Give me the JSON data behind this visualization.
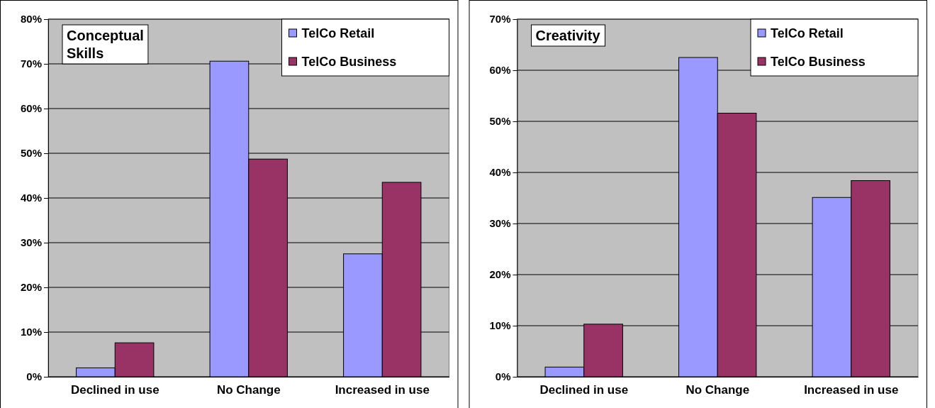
{
  "chart_data": [
    {
      "type": "bar",
      "title": "Conceptual Skills",
      "categories": [
        "Declined in use",
        "No Change",
        "Increased in use"
      ],
      "series": [
        {
          "name": "TelCo Retail",
          "color": "#9999ff",
          "values": [
            2,
            70.6,
            27.5
          ]
        },
        {
          "name": "TelCo Business",
          "color": "#993366",
          "values": [
            7.6,
            48.7,
            43.5
          ]
        }
      ],
      "ylim": [
        0,
        80
      ],
      "yticks": [
        {
          "value": 0,
          "label": "0%"
        },
        {
          "value": 10,
          "label": "10%"
        },
        {
          "value": 20,
          "label": "20%"
        },
        {
          "value": 30,
          "label": "30%"
        },
        {
          "value": 40,
          "label": "40%"
        },
        {
          "value": 50,
          "label": "50%"
        },
        {
          "value": 60,
          "label": "60%"
        },
        {
          "value": 70,
          "label": "70%"
        },
        {
          "value": 80,
          "label": "80%"
        }
      ],
      "grid": "y",
      "legend": "top right"
    },
    {
      "type": "bar",
      "title": "Creativity",
      "categories": [
        "Declined in use",
        "No Change",
        "Increased in use"
      ],
      "series": [
        {
          "name": "TelCo Retail",
          "color": "#9999ff",
          "values": [
            1.9,
            62.5,
            35.1
          ]
        },
        {
          "name": "TelCo Business",
          "color": "#993366",
          "values": [
            10.3,
            51.6,
            38.4
          ]
        }
      ],
      "ylim": [
        0,
        70
      ],
      "yticks": [
        {
          "value": 0,
          "label": "0%"
        },
        {
          "value": 10,
          "label": "10%"
        },
        {
          "value": 20,
          "label": "20%"
        },
        {
          "value": 30,
          "label": "30%"
        },
        {
          "value": 40,
          "label": "40%"
        },
        {
          "value": 50,
          "label": "50%"
        },
        {
          "value": 60,
          "label": "60%"
        },
        {
          "value": 70,
          "label": "70%"
        }
      ],
      "grid": "y",
      "legend": "top right"
    }
  ]
}
